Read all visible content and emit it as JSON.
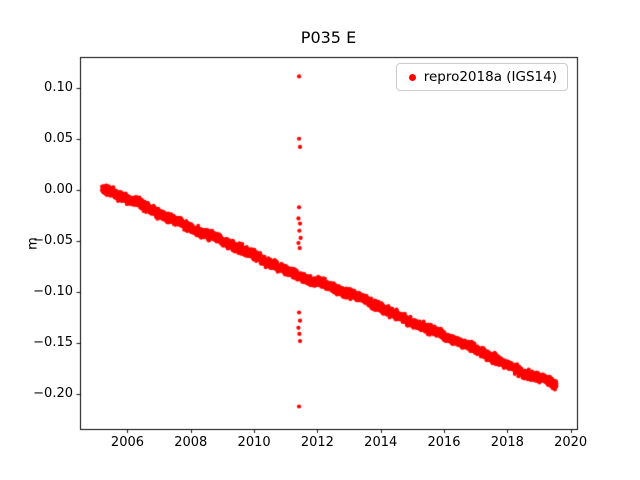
{
  "chart_data": {
    "type": "scatter",
    "title": "P035 E",
    "xlabel": "",
    "ylabel": "m",
    "xlim": [
      2004.5,
      2020.2
    ],
    "ylim": [
      -0.234,
      0.13
    ],
    "xticks": [
      2006,
      2008,
      2010,
      2012,
      2014,
      2016,
      2018,
      2020
    ],
    "yticks": [
      0.1,
      0.05,
      0.0,
      -0.05,
      -0.1,
      -0.15,
      -0.2
    ],
    "grid": false,
    "legend_position": "upper right",
    "background_color": "#ffffff",
    "series": [
      {
        "name": "repro2018a (IGS14)",
        "color": "#ff0000",
        "marker": "dot",
        "trend": {
          "x_start": 2005.2,
          "x_end": 2019.55,
          "y_start": 0.0,
          "y_end": -0.19,
          "points_per_year": 365,
          "noise_amp": 0.0035,
          "wiggle_amp": 0.0022,
          "seed": 42
        },
        "outliers": [
          [
            2011.42,
            0.111
          ],
          [
            2011.42,
            0.05
          ],
          [
            2011.45,
            0.042
          ],
          [
            2011.42,
            -0.017
          ],
          [
            2011.4,
            -0.028
          ],
          [
            2011.45,
            -0.033
          ],
          [
            2011.43,
            -0.04
          ],
          [
            2011.47,
            -0.047
          ],
          [
            2011.4,
            -0.052
          ],
          [
            2011.44,
            -0.057
          ],
          [
            2011.42,
            -0.12
          ],
          [
            2011.45,
            -0.128
          ],
          [
            2011.4,
            -0.135
          ],
          [
            2011.43,
            -0.141
          ],
          [
            2011.45,
            -0.148
          ],
          [
            2011.42,
            -0.212
          ]
        ]
      }
    ]
  }
}
